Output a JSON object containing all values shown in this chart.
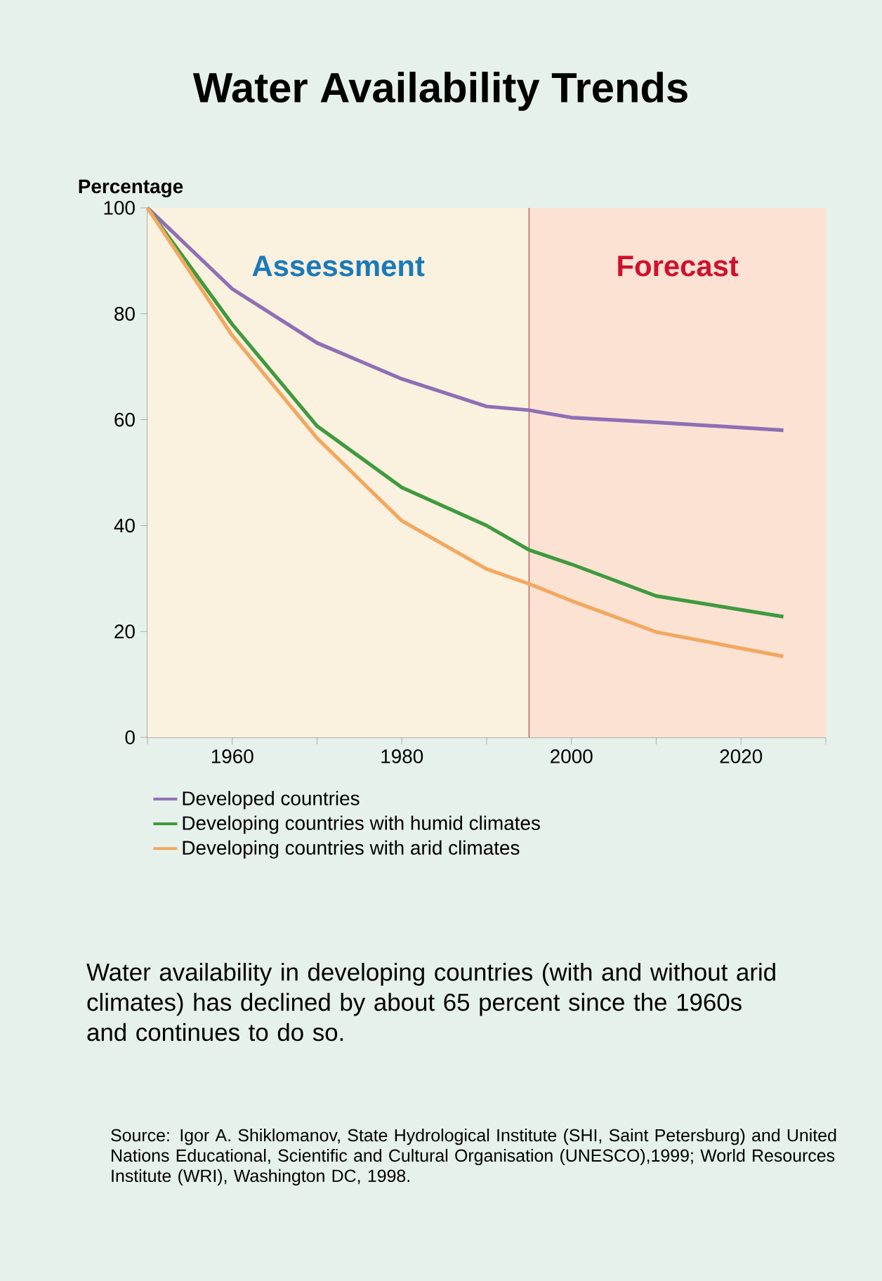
{
  "chart_data": {
    "type": "line",
    "title": "Water Availability Trends",
    "ylabel": "Percentage",
    "x": [
      1950,
      1960,
      1970,
      1980,
      1990,
      1995,
      2000,
      2010,
      2025
    ],
    "series": [
      {
        "name": "Developed countries",
        "color": "#8e6fb5",
        "values": [
          100,
          84.7,
          74.5,
          67.7,
          62.5,
          61.8,
          60.4,
          59.5,
          58.0
        ]
      },
      {
        "name": "Developing countries with humid climates",
        "color": "#3f9a3f",
        "values": [
          100,
          78,
          58.8,
          47.2,
          40,
          35.4,
          32.7,
          26.7,
          22.8
        ]
      },
      {
        "name": "Developing countries with arid climates",
        "color": "#f2a860",
        "values": [
          100,
          75.9,
          56.5,
          40.9,
          31.8,
          29,
          25.8,
          19.9,
          15.3
        ]
      }
    ],
    "xlim": [
      1950,
      2030
    ],
    "xticks": [
      {
        "value": 1950,
        "label": null
      },
      1960,
      {
        "value": 1970,
        "label": null
      },
      1980,
      {
        "value": 1990,
        "label": null
      },
      2000,
      {
        "value": 2010,
        "label": null
      },
      2020,
      {
        "value": 2030,
        "label": null
      }
    ],
    "ylim": [
      0,
      100
    ],
    "yticks": [
      0,
      20,
      40,
      60,
      80,
      100
    ],
    "ref_lines": [
      {
        "axis": "x",
        "value": 1995,
        "color": "#c0404a"
      }
    ],
    "bands": [
      {
        "axis": "x",
        "from": 1950,
        "to": 1995,
        "label": "Assessment",
        "color": "#fbf1df"
      },
      {
        "axis": "x",
        "from": 1995,
        "to": 2030,
        "label": "Forecast",
        "color": "#fbe2d3"
      }
    ],
    "legend": "bottom",
    "marker": "none",
    "line_style": "solid",
    "annotations": [
      "Water availability in developing countries (with and without arid climates) has declined by about 65 percent since the 1960s and continues to do so.",
      "Source: Igor A. Shiklomanov, State Hydrological Institute (SHI, Saint Petersburg) and United Nations Educational, Scientific and Cultural Organisation (UNESCO),1999; World Resources Institute (WRI), Washington DC, 1998."
    ]
  }
}
